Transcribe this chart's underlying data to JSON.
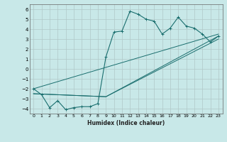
{
  "title": "",
  "xlabel": "Humidex (Indice chaleur)",
  "bg_color": "#c8e8e8",
  "grid_color": "#b0c8c8",
  "line_color": "#1a6e6e",
  "xlim": [
    -0.5,
    23.5
  ],
  "ylim": [
    -4.5,
    6.5
  ],
  "xticks": [
    0,
    1,
    2,
    3,
    4,
    5,
    6,
    7,
    8,
    9,
    10,
    11,
    12,
    13,
    14,
    15,
    16,
    17,
    18,
    19,
    20,
    21,
    22,
    23
  ],
  "yticks": [
    -4,
    -3,
    -2,
    -1,
    0,
    1,
    2,
    3,
    4,
    5,
    6
  ],
  "curve_x": [
    0,
    1,
    2,
    3,
    4,
    5,
    6,
    7,
    8,
    9,
    10,
    11,
    12,
    13,
    14,
    15,
    16,
    17,
    18,
    19,
    20,
    21,
    22,
    23
  ],
  "curve_y": [
    -2.0,
    -2.6,
    -3.9,
    -3.2,
    -4.1,
    -3.9,
    -3.8,
    -3.8,
    -3.5,
    1.2,
    3.7,
    3.8,
    5.8,
    5.5,
    5.0,
    4.8,
    3.5,
    4.1,
    5.2,
    4.3,
    4.1,
    3.5,
    2.7,
    3.3
  ],
  "line1": [
    [
      0,
      -2.0
    ],
    [
      23,
      3.5
    ]
  ],
  "line2": [
    [
      0,
      -2.5
    ],
    [
      9,
      -2.8
    ],
    [
      23,
      3.3
    ]
  ],
  "line3": [
    [
      0,
      -2.5
    ],
    [
      9,
      -2.8
    ],
    [
      23,
      3.0
    ]
  ]
}
